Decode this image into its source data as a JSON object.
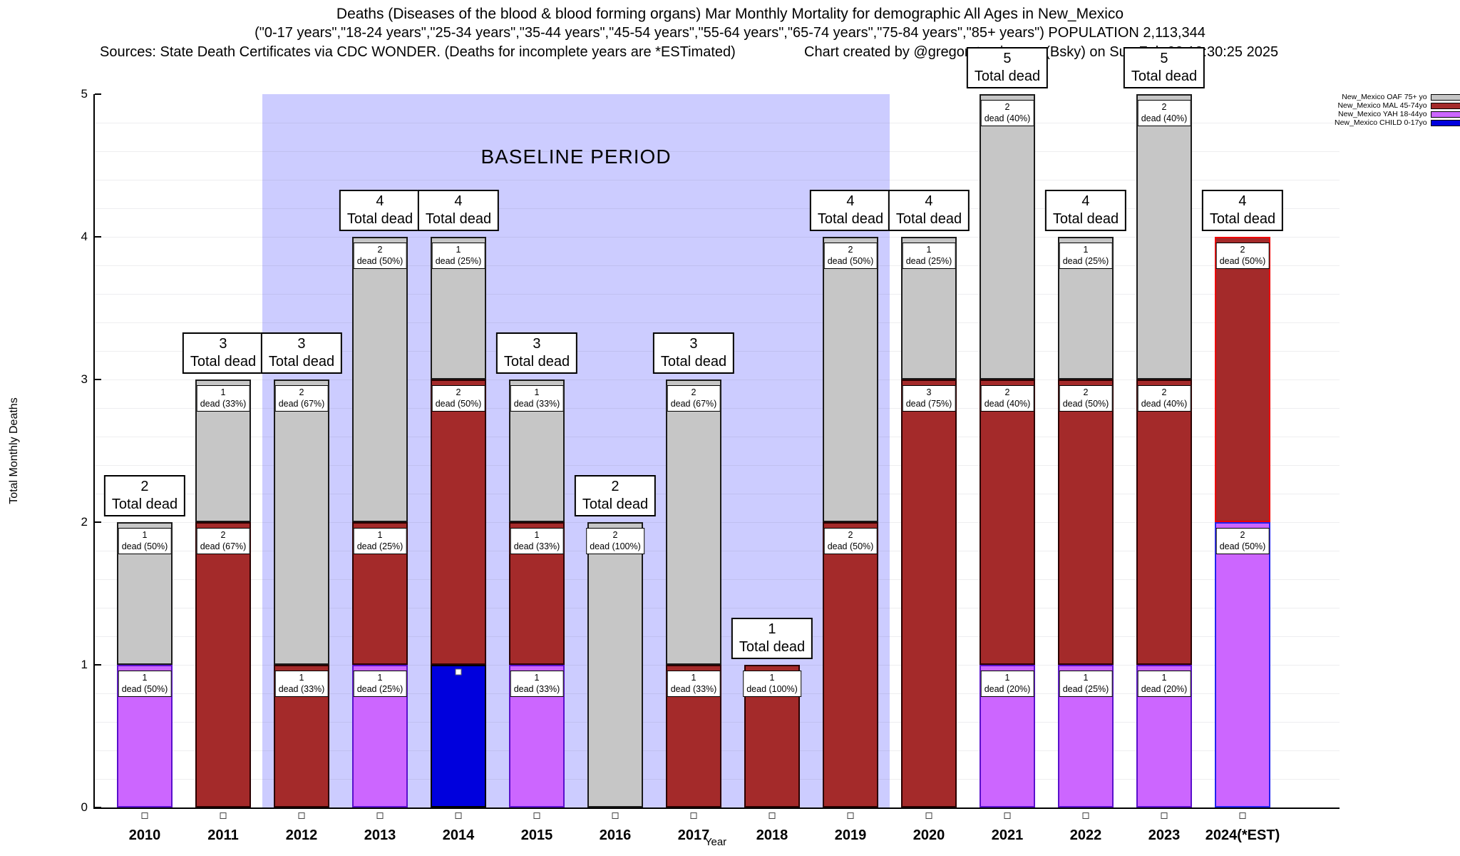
{
  "title": {
    "line1": "Deaths (Diseases of the blood & blood forming organs) Mar Monthly Mortality for demographic All Ages in New_Mexico",
    "line2": "(\"0-17 years\",\"18-24 years\",\"25-34 years\",\"35-44 years\",\"45-54 years\",\"55-64 years\",\"65-74 years\",\"75-84 years\",\"85+ years\") POPULATION 2,113,344",
    "line3_left": "Sources: State Death Certificates via CDC WONDER. (Deaths for incomplete years are *ESTimated)",
    "line3_right": "Chart created by @gregorytravis.com (Bsky) on Sun Feb 02 12:30:25 2025"
  },
  "legend": [
    {
      "series": "OAF",
      "label": "New_Mexico OAF 75+ yo",
      "color": "#c6c6c6"
    },
    {
      "series": "MAL",
      "label": "New_Mexico MAL 45-74yo",
      "color": "#a42a2a"
    },
    {
      "series": "YAH",
      "label": "New_Mexico YAH 18-44yo",
      "color": "#cc66ff"
    },
    {
      "series": "CHILD",
      "label": "New_Mexico CHILD 0-17yo",
      "color": "#0000dd"
    }
  ],
  "chart_data": {
    "type": "bar",
    "stacked": true,
    "title": "Deaths (Diseases of the blood & blood forming organs) Mar Monthly Mortality, All Ages, New Mexico",
    "xlabel": "Year",
    "ylabel": "Total Monthly Deaths",
    "ylim": [
      0,
      5
    ],
    "y_ticks": [
      0,
      1,
      2,
      3,
      4,
      5
    ],
    "grid": "minor-horizontal",
    "legend_position": "top-right",
    "total_label_suffix": "Total dead",
    "seg_label_word": "dead",
    "baseline": {
      "label": "BASELINE PERIOD",
      "covers_years": [
        "2012",
        "2019"
      ],
      "color": "#ccccff"
    },
    "series_styles": {
      "OAF": {
        "fill": "#c6c6c6",
        "border": "#1a1a1a"
      },
      "MAL": {
        "fill": "#a42a2a",
        "border": "#2a0000"
      },
      "YAH": {
        "fill": "#cc66ff",
        "border": "#5a10cc"
      },
      "CHILD": {
        "fill": "#0000dd",
        "border": "#000000"
      }
    },
    "categories": [
      "2010",
      "2011",
      "2012",
      "2013",
      "2014",
      "2015",
      "2016",
      "2017",
      "2018",
      "2019",
      "2020",
      "2021",
      "2022",
      "2023",
      "2024(*EST)"
    ],
    "bars": [
      {
        "year": "2010",
        "total": 2,
        "segments": [
          {
            "group": "YAH",
            "value": 1,
            "pct": "50%"
          },
          {
            "group": "OAF",
            "value": 1,
            "pct": "50%"
          }
        ]
      },
      {
        "year": "2011",
        "total": 3,
        "segments": [
          {
            "group": "MAL",
            "value": 2,
            "pct": "67%"
          },
          {
            "group": "OAF",
            "value": 1,
            "pct": "33%"
          }
        ]
      },
      {
        "year": "2012",
        "total": 3,
        "segments": [
          {
            "group": "MAL",
            "value": 1,
            "pct": "33%"
          },
          {
            "group": "OAF",
            "value": 2,
            "pct": "67%"
          }
        ]
      },
      {
        "year": "2013",
        "total": 4,
        "segments": [
          {
            "group": "YAH",
            "value": 1,
            "pct": "25%"
          },
          {
            "group": "MAL",
            "value": 1,
            "pct": "25%"
          },
          {
            "group": "OAF",
            "value": 2,
            "pct": "50%"
          }
        ]
      },
      {
        "year": "2014",
        "total": 4,
        "segments": [
          {
            "group": "CHILD",
            "value": 1,
            "pct": "25%",
            "label_hidden": true,
            "marker": true
          },
          {
            "group": "MAL",
            "value": 2,
            "pct": "50%"
          },
          {
            "group": "OAF",
            "value": 1,
            "pct": "25%"
          }
        ]
      },
      {
        "year": "2015",
        "total": 3,
        "segments": [
          {
            "group": "YAH",
            "value": 1,
            "pct": "33%"
          },
          {
            "group": "MAL",
            "value": 1,
            "pct": "33%"
          },
          {
            "group": "OAF",
            "value": 1,
            "pct": "33%"
          }
        ]
      },
      {
        "year": "2016",
        "total": 2,
        "segments": [
          {
            "group": "OAF",
            "value": 2,
            "pct": "100%"
          }
        ]
      },
      {
        "year": "2017",
        "total": 3,
        "segments": [
          {
            "group": "MAL",
            "value": 1,
            "pct": "33%"
          },
          {
            "group": "OAF",
            "value": 2,
            "pct": "67%"
          }
        ]
      },
      {
        "year": "2018",
        "total": 1,
        "segments": [
          {
            "group": "MAL",
            "value": 1,
            "pct": "100%"
          }
        ]
      },
      {
        "year": "2019",
        "total": 4,
        "segments": [
          {
            "group": "MAL",
            "value": 2,
            "pct": "50%"
          },
          {
            "group": "OAF",
            "value": 2,
            "pct": "50%"
          }
        ]
      },
      {
        "year": "2020",
        "total": 4,
        "segments": [
          {
            "group": "MAL",
            "value": 3,
            "pct": "75%"
          },
          {
            "group": "OAF",
            "value": 1,
            "pct": "25%"
          }
        ]
      },
      {
        "year": "2021",
        "total": 5,
        "segments": [
          {
            "group": "YAH",
            "value": 1,
            "pct": "20%"
          },
          {
            "group": "MAL",
            "value": 2,
            "pct": "40%"
          },
          {
            "group": "OAF",
            "value": 2,
            "pct": "40%"
          }
        ]
      },
      {
        "year": "2022",
        "total": 4,
        "segments": [
          {
            "group": "YAH",
            "value": 1,
            "pct": "25%"
          },
          {
            "group": "MAL",
            "value": 2,
            "pct": "50%"
          },
          {
            "group": "OAF",
            "value": 1,
            "pct": "25%"
          }
        ]
      },
      {
        "year": "2023",
        "total": 5,
        "segments": [
          {
            "group": "YAH",
            "value": 1,
            "pct": "20%"
          },
          {
            "group": "MAL",
            "value": 2,
            "pct": "40%"
          },
          {
            "group": "OAF",
            "value": 2,
            "pct": "40%"
          }
        ]
      },
      {
        "year": "2024(*EST)",
        "total": 4,
        "segments": [
          {
            "group": "YAH",
            "value": 2,
            "pct": "50%",
            "border": "#2222ee"
          },
          {
            "group": "MAL",
            "value": 2,
            "pct": "50%",
            "border": "#ee0000"
          }
        ]
      }
    ]
  }
}
